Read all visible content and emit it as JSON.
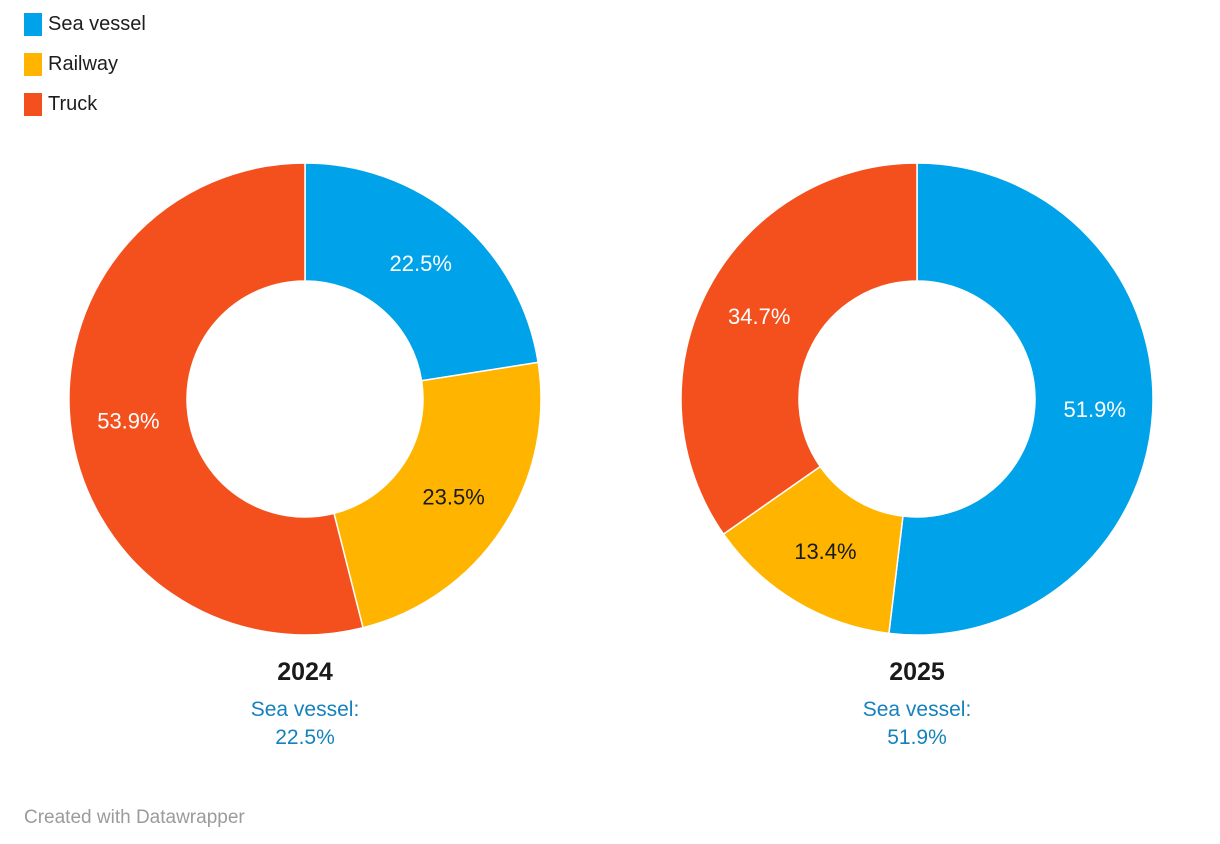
{
  "legend": {
    "items": [
      {
        "label": "Sea vessel",
        "color": "#00a2e9"
      },
      {
        "label": "Railway",
        "color": "#ffb400"
      },
      {
        "label": "Truck",
        "color": "#f4501e"
      }
    ]
  },
  "chart_data": {
    "type": "pie",
    "variant": "donut",
    "unit": "%",
    "legend_position": "top-left",
    "inner_radius_ratio": 0.5,
    "categories": [
      "Sea vessel",
      "Railway",
      "Truck"
    ],
    "colors": [
      "#00a2e9",
      "#ffb400",
      "#f4501e"
    ],
    "annotation_color": "#1581bd",
    "charts": [
      {
        "title": "2024",
        "annotation": "Sea vessel: 22.5%",
        "slices": [
          {
            "category": "Sea vessel",
            "value": 22.5,
            "display": "22.5%",
            "color": "#00a2e9",
            "label_color": "#ffffff"
          },
          {
            "category": "Railway",
            "value": 23.5,
            "display": "23.5%",
            "color": "#ffb400",
            "label_color": "#1a1a1a"
          },
          {
            "category": "Truck",
            "value": 53.9,
            "display": "53.9%",
            "color": "#f4501e",
            "label_color": "#ffffff"
          }
        ]
      },
      {
        "title": "2025",
        "annotation": "Sea vessel: 51.9%",
        "slices": [
          {
            "category": "Sea vessel",
            "value": 51.9,
            "display": "51.9%",
            "color": "#00a2e9",
            "label_color": "#ffffff"
          },
          {
            "category": "Railway",
            "value": 13.4,
            "display": "13.4%",
            "color": "#ffb400",
            "label_color": "#1a1a1a"
          },
          {
            "category": "Truck",
            "value": 34.7,
            "display": "34.7%",
            "color": "#f4501e",
            "label_color": "#ffffff"
          }
        ]
      }
    ]
  },
  "footer": {
    "credit": "Created with Datawrapper"
  }
}
